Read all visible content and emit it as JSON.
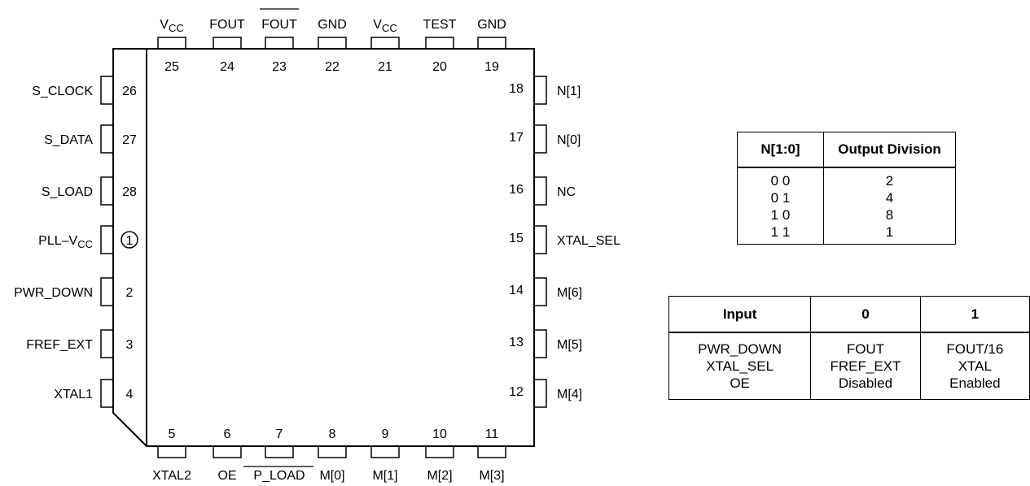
{
  "chip": {
    "top_pins": [
      {
        "num": "25",
        "label": "V",
        "sub": "CC",
        "overline": false
      },
      {
        "num": "24",
        "label": "FOUT",
        "sub": "",
        "overline": false
      },
      {
        "num": "23",
        "label": "FOUT",
        "sub": "",
        "overline": true
      },
      {
        "num": "22",
        "label": "GND",
        "sub": "",
        "overline": false
      },
      {
        "num": "21",
        "label": "V",
        "sub": "CC",
        "overline": false
      },
      {
        "num": "20",
        "label": "TEST",
        "sub": "",
        "overline": false
      },
      {
        "num": "19",
        "label": "GND",
        "sub": "",
        "overline": false
      }
    ],
    "bottom_pins": [
      {
        "num": "5",
        "label": "XTAL2",
        "overline": false
      },
      {
        "num": "6",
        "label": "OE",
        "overline": false
      },
      {
        "num": "7",
        "label": "P_LOAD",
        "overline": true
      },
      {
        "num": "8",
        "label": "M[0]",
        "overline": false
      },
      {
        "num": "9",
        "label": "M[1]",
        "overline": false
      },
      {
        "num": "10",
        "label": "M[2]",
        "overline": false
      },
      {
        "num": "11",
        "label": "M[3]",
        "overline": false
      }
    ],
    "left_pins": [
      {
        "num": "26",
        "label": "S_CLOCK",
        "sub": "",
        "circled": false
      },
      {
        "num": "27",
        "label": "S_DATA",
        "sub": "",
        "circled": false
      },
      {
        "num": "28",
        "label": "S_LOAD",
        "sub": "",
        "circled": false
      },
      {
        "num": "1",
        "label": "PLL–V",
        "sub": "CC",
        "circled": true
      },
      {
        "num": "2",
        "label": "PWR_DOWN",
        "sub": "",
        "circled": false
      },
      {
        "num": "3",
        "label": "FREF_EXT",
        "sub": "",
        "circled": false
      },
      {
        "num": "4",
        "label": "XTAL1",
        "sub": "",
        "circled": false
      }
    ],
    "right_pins": [
      {
        "num": "18",
        "label": "N[1]"
      },
      {
        "num": "17",
        "label": "N[0]"
      },
      {
        "num": "16",
        "label": "NC"
      },
      {
        "num": "15",
        "label": "XTAL_SEL"
      },
      {
        "num": "14",
        "label": "M[6]"
      },
      {
        "num": "13",
        "label": "M[5]"
      },
      {
        "num": "12",
        "label": "M[4]"
      }
    ]
  },
  "n_table": {
    "headers": [
      "N[1:0]",
      "Output Division"
    ],
    "rows": [
      [
        "0 0",
        "2"
      ],
      [
        "0 1",
        "4"
      ],
      [
        "1 0",
        "8"
      ],
      [
        "1 1",
        "1"
      ]
    ]
  },
  "input_table": {
    "headers": [
      "Input",
      "0",
      "1"
    ],
    "rows": [
      [
        "PWR_DOWN",
        "FOUT",
        "FOUT/16"
      ],
      [
        "XTAL_SEL",
        "FREF_EXT",
        "XTAL"
      ],
      [
        "OE",
        "Disabled",
        "Enabled"
      ]
    ]
  }
}
